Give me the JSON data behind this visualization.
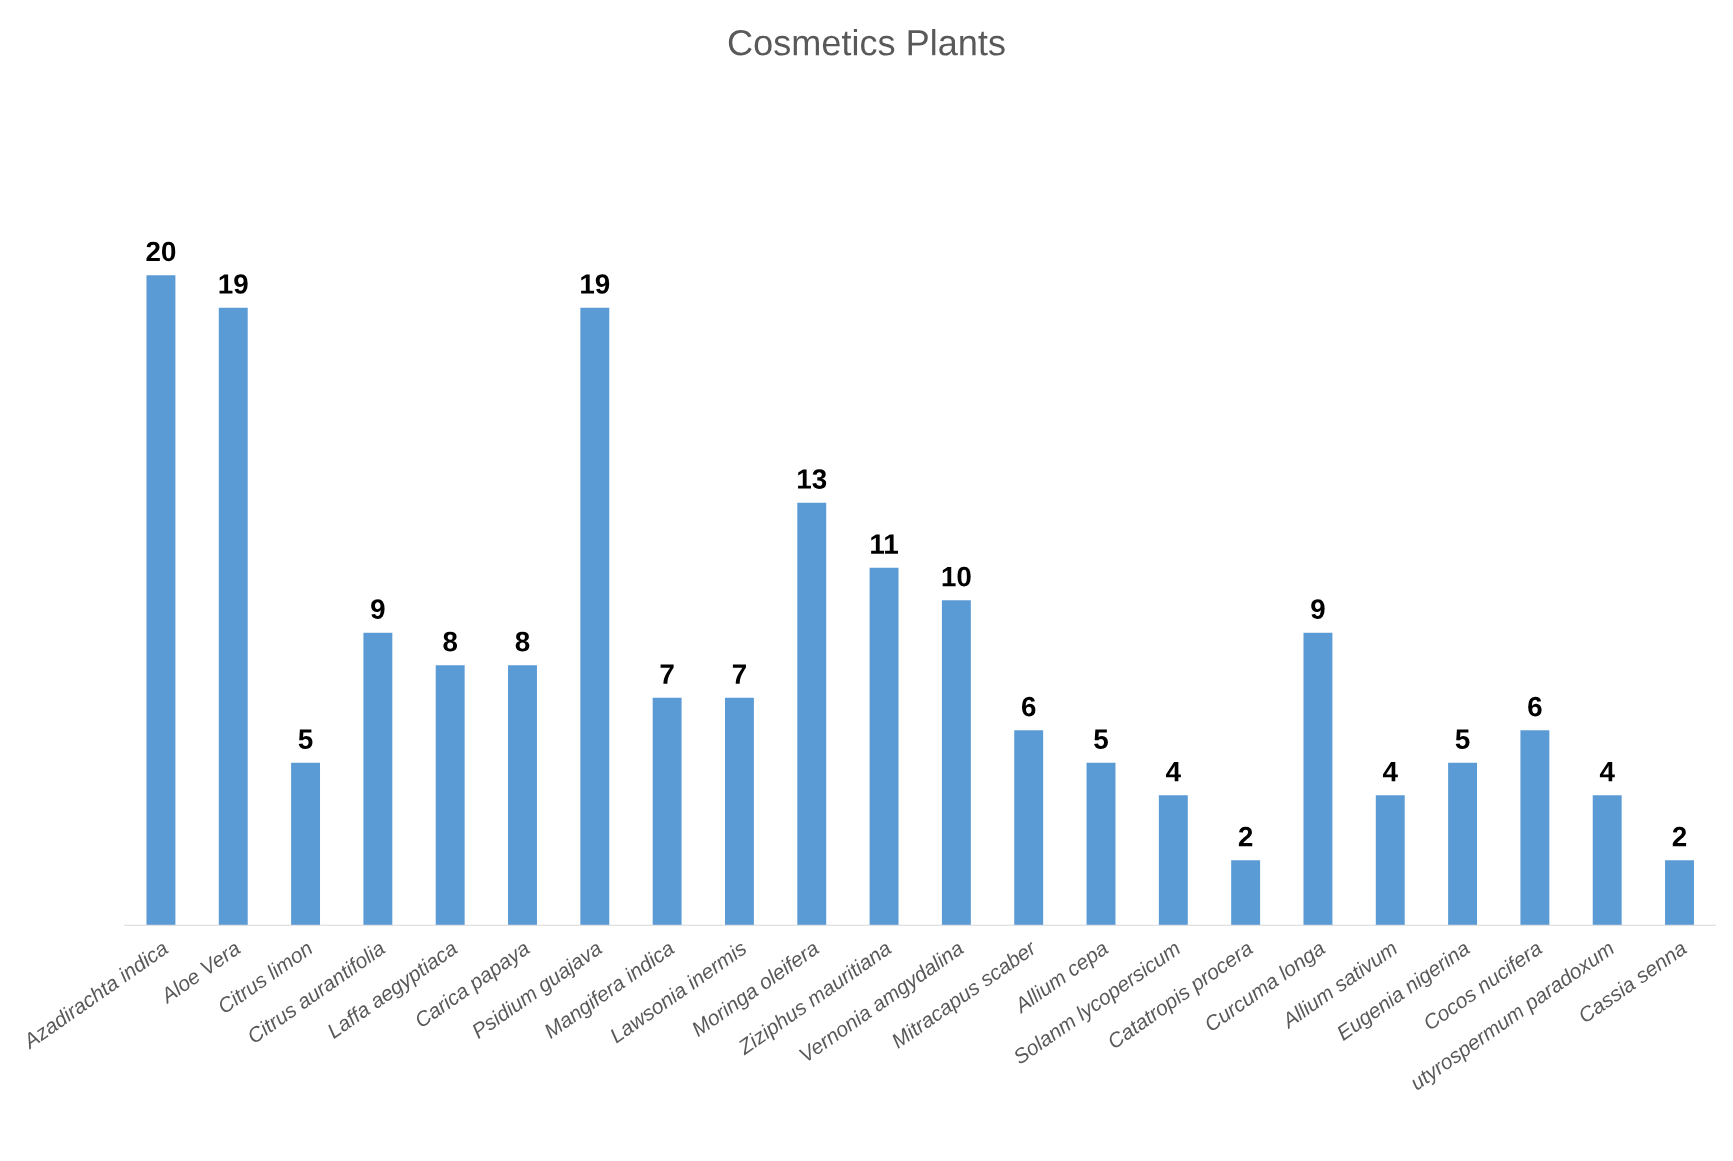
{
  "chart_data": {
    "type": "bar",
    "title": "Cosmetics Plants",
    "categories": [
      "Azadirachta indica",
      "Aloe Vera",
      "Citrus limon",
      "Citrus aurantifolia",
      "Laffa aegyptiaca",
      "Carica papaya",
      "Psidium guajava",
      "Mangifera indica",
      "Lawsonia inermis",
      "Moringa oleifera",
      "Ziziphus mauritiana",
      "Vernonia amgydalina",
      "Mitracapus scaber",
      "Allium cepa",
      "Solanm lycopersicum",
      "Catatropis procera",
      "Curcuma longa",
      "Allium sativum",
      "Eugenia nigerina",
      "Cocos nucifera",
      "utyrospermum paradoxum",
      "Cassia senna"
    ],
    "values": [
      20,
      19,
      5,
      9,
      8,
      8,
      19,
      7,
      7,
      13,
      11,
      10,
      6,
      5,
      4,
      2,
      9,
      4,
      5,
      6,
      4,
      2
    ],
    "color": "#5b9bd5",
    "data_labels": true
  }
}
